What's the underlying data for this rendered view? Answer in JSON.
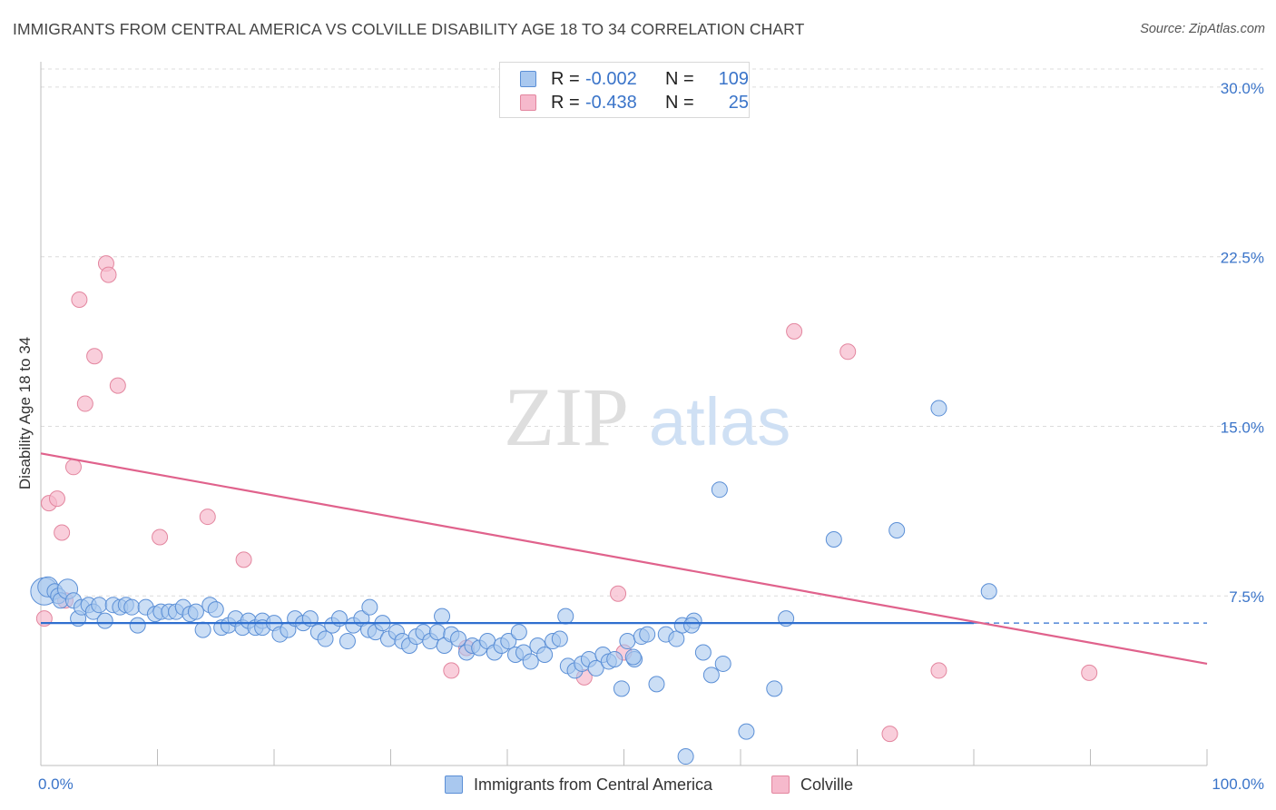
{
  "header": {
    "title": "IMMIGRANTS FROM CENTRAL AMERICA VS COLVILLE DISABILITY AGE 18 TO 34 CORRELATION CHART",
    "source": "Source: ZipAtlas.com"
  },
  "watermark": {
    "zip": "ZIP",
    "atlas": "atlas"
  },
  "colors": {
    "blue_fill": "#a9c8ef",
    "blue_stroke": "#5b8fd6",
    "blue_line": "#2f6fcf",
    "pink_fill": "#f6b9cc",
    "pink_stroke": "#e3869f",
    "pink_line": "#e0628c",
    "tick_label": "#3a74c9",
    "grid": "#dcdcdc"
  },
  "legend_top": [
    {
      "r_label": "R =",
      "r_value": "-0.002",
      "n_label": "N =",
      "n_value": "109",
      "color": "blue"
    },
    {
      "r_label": "R =",
      "r_value": "-0.438",
      "n_label": "N =",
      "n_value": "25",
      "color": "pink"
    }
  ],
  "chart_data": {
    "type": "scatter",
    "title": "IMMIGRANTS FROM CENTRAL AMERICA VS COLVILLE DISABILITY AGE 18 TO 34 CORRELATION CHART",
    "xlabel": "",
    "ylabel": "Disability Age 18 to 34",
    "xlim": [
      0,
      100
    ],
    "ylim": [
      0,
      30.8
    ],
    "x_tick_labels": [
      "0.0%",
      "100.0%"
    ],
    "y_ticks": [
      7.5,
      15.0,
      22.5,
      30.0
    ],
    "y_tick_labels": [
      "7.5%",
      "15.0%",
      "22.5%",
      "30.0%"
    ],
    "grid": "horizontal dashed",
    "legend_position": "bottom",
    "series": [
      {
        "name": "Immigrants from Central America",
        "color": "blue",
        "trend": {
          "x": [
            0,
            80
          ],
          "y": [
            6.3,
            6.3
          ],
          "dashed_extension_to": 100
        },
        "points": [
          [
            0.3,
            7.7,
            3
          ],
          [
            0.6,
            7.9,
            2
          ],
          [
            1.2,
            7.7,
            1
          ],
          [
            1.5,
            7.5,
            1
          ],
          [
            1.7,
            7.3,
            1
          ],
          [
            2.3,
            7.8,
            2
          ],
          [
            2.8,
            7.3,
            1
          ],
          [
            3.2,
            6.5,
            1
          ],
          [
            3.5,
            7.0,
            1
          ],
          [
            4.1,
            7.1,
            1
          ],
          [
            4.5,
            6.8,
            1
          ],
          [
            5.0,
            7.1,
            1
          ],
          [
            5.5,
            6.4,
            1
          ],
          [
            6.2,
            7.1,
            1
          ],
          [
            6.8,
            7.0,
            1
          ],
          [
            7.3,
            7.1,
            1
          ],
          [
            7.8,
            7.0,
            1
          ],
          [
            8.3,
            6.2,
            1
          ],
          [
            9.0,
            7.0,
            1
          ],
          [
            9.8,
            6.7,
            1
          ],
          [
            10.3,
            6.8,
            1
          ],
          [
            11.0,
            6.8,
            1
          ],
          [
            11.6,
            6.8,
            1
          ],
          [
            12.2,
            7.0,
            1
          ],
          [
            12.8,
            6.7,
            1
          ],
          [
            13.3,
            6.8,
            1
          ],
          [
            13.9,
            6.0,
            1
          ],
          [
            14.5,
            7.1,
            1
          ],
          [
            15.0,
            6.9,
            1
          ],
          [
            15.5,
            6.1,
            1
          ],
          [
            16.1,
            6.2,
            1
          ],
          [
            16.7,
            6.5,
            1
          ],
          [
            17.3,
            6.1,
            1
          ],
          [
            17.8,
            6.4,
            1
          ],
          [
            18.4,
            6.1,
            1
          ],
          [
            19.0,
            6.4,
            1
          ],
          [
            19.0,
            6.1,
            1
          ],
          [
            20.0,
            6.3,
            1
          ],
          [
            20.5,
            5.8,
            1
          ],
          [
            21.2,
            6.0,
            1
          ],
          [
            21.8,
            6.5,
            1
          ],
          [
            22.5,
            6.3,
            1
          ],
          [
            23.1,
            6.5,
            1
          ],
          [
            23.8,
            5.9,
            1
          ],
          [
            24.4,
            5.6,
            1
          ],
          [
            25.0,
            6.2,
            1
          ],
          [
            25.6,
            6.5,
            1
          ],
          [
            26.3,
            5.5,
            1
          ],
          [
            26.8,
            6.2,
            1
          ],
          [
            27.5,
            6.5,
            1
          ],
          [
            28.1,
            6.0,
            1
          ],
          [
            28.7,
            5.9,
            1
          ],
          [
            29.3,
            6.3,
            1
          ],
          [
            29.8,
            5.6,
            1
          ],
          [
            30.5,
            5.9,
            1
          ],
          [
            31.0,
            5.5,
            1
          ],
          [
            31.6,
            5.3,
            1
          ],
          [
            32.2,
            5.7,
            1
          ],
          [
            32.8,
            5.9,
            1
          ],
          [
            33.4,
            5.5,
            1
          ],
          [
            34.0,
            5.9,
            1
          ],
          [
            34.6,
            5.3,
            1
          ],
          [
            35.2,
            5.8,
            1
          ],
          [
            35.8,
            5.6,
            1
          ],
          [
            36.5,
            5.0,
            1
          ],
          [
            37.0,
            5.3,
            1
          ],
          [
            37.6,
            5.2,
            1
          ],
          [
            38.3,
            5.5,
            1
          ],
          [
            38.9,
            5.0,
            1
          ],
          [
            39.5,
            5.3,
            1
          ],
          [
            40.1,
            5.5,
            1
          ],
          [
            40.7,
            4.9,
            1
          ],
          [
            41.4,
            5.0,
            1
          ],
          [
            42.0,
            4.6,
            1
          ],
          [
            42.6,
            5.3,
            1
          ],
          [
            43.2,
            4.9,
            1
          ],
          [
            43.9,
            5.5,
            1
          ],
          [
            44.5,
            5.6,
            1
          ],
          [
            45.2,
            4.4,
            1
          ],
          [
            45.8,
            4.2,
            1
          ],
          [
            46.4,
            4.5,
            1
          ],
          [
            47.0,
            4.7,
            1
          ],
          [
            47.6,
            4.3,
            1
          ],
          [
            48.2,
            4.9,
            1
          ],
          [
            48.7,
            4.6,
            1
          ],
          [
            49.2,
            4.7,
            1
          ],
          [
            49.8,
            3.4,
            1
          ],
          [
            50.3,
            5.5,
            1
          ],
          [
            50.9,
            4.7,
            1
          ],
          [
            51.5,
            5.7,
            1
          ],
          [
            52.0,
            5.8,
            1
          ],
          [
            52.8,
            3.6,
            1
          ],
          [
            53.6,
            5.8,
            1
          ],
          [
            54.5,
            5.6,
            1
          ],
          [
            55.0,
            6.2,
            1
          ],
          [
            56.0,
            6.4,
            1
          ],
          [
            56.8,
            5.0,
            1
          ],
          [
            57.5,
            4.0,
            1
          ],
          [
            58.5,
            4.5,
            1
          ],
          [
            28.2,
            7.0,
            1
          ],
          [
            34.4,
            6.6,
            1
          ],
          [
            41.0,
            5.9,
            1
          ],
          [
            45.0,
            6.6,
            1
          ],
          [
            50.8,
            4.8,
            1
          ],
          [
            55.8,
            6.2,
            1
          ],
          [
            62.9,
            3.4,
            1
          ],
          [
            63.9,
            6.5,
            1
          ],
          [
            60.5,
            1.5,
            1
          ],
          [
            58.2,
            12.2,
            1
          ],
          [
            68.0,
            10.0,
            1
          ],
          [
            73.4,
            10.4,
            1
          ],
          [
            77.0,
            15.8,
            1
          ],
          [
            81.3,
            7.7,
            1
          ],
          [
            55.3,
            0.4,
            1
          ]
        ]
      },
      {
        "name": "Colville",
        "color": "pink",
        "trend": {
          "x": [
            0,
            100
          ],
          "y": [
            13.8,
            4.5
          ]
        },
        "points": [
          [
            0.3,
            6.5
          ],
          [
            0.7,
            11.6
          ],
          [
            1.4,
            11.8
          ],
          [
            1.8,
            10.3
          ],
          [
            2.1,
            7.3
          ],
          [
            2.8,
            13.2
          ],
          [
            3.3,
            20.6
          ],
          [
            3.8,
            16.0
          ],
          [
            4.6,
            18.1
          ],
          [
            5.6,
            22.2
          ],
          [
            5.8,
            21.7
          ],
          [
            6.6,
            16.8
          ],
          [
            10.2,
            10.1
          ],
          [
            14.3,
            11.0
          ],
          [
            17.4,
            9.1
          ],
          [
            35.2,
            4.2
          ],
          [
            36.5,
            5.2
          ],
          [
            46.6,
            3.9
          ],
          [
            49.5,
            7.6
          ],
          [
            50.0,
            5.0
          ],
          [
            64.6,
            19.2
          ],
          [
            69.2,
            18.3
          ],
          [
            72.8,
            1.4
          ],
          [
            77.0,
            4.2
          ],
          [
            89.9,
            4.1
          ]
        ]
      }
    ]
  },
  "legend_bottom": [
    {
      "label": "Immigrants from Central America",
      "color": "blue"
    },
    {
      "label": "Colville",
      "color": "pink"
    }
  ]
}
